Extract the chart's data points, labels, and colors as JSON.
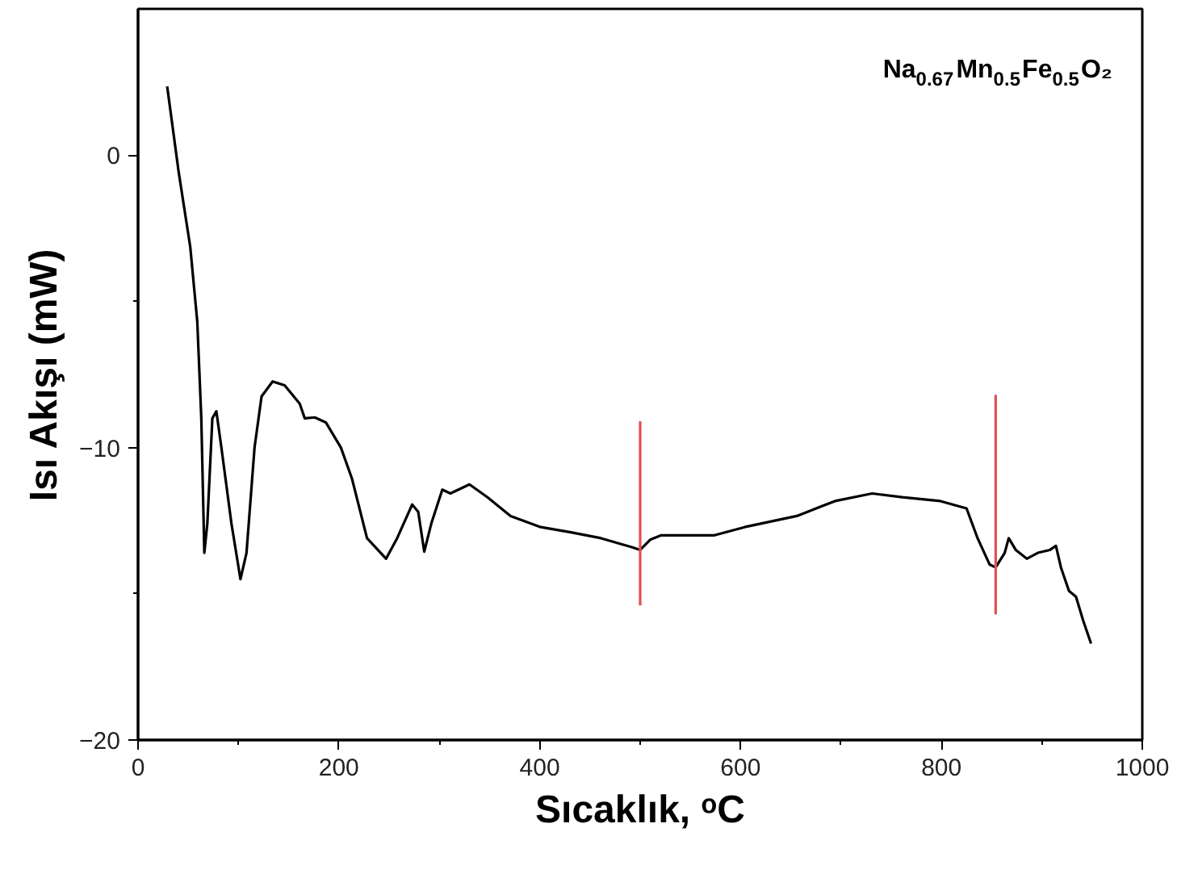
{
  "chart_data": {
    "type": "line",
    "xlabel": "Sıcaklık, ᵒC",
    "ylabel": "Isı Akışı (mW)",
    "annotations": [
      "Na$_{0.67}$Mn$_{0.5}$Fe$_{0.5}$O₂"
    ],
    "xlim": [
      0,
      1000
    ],
    "ylim": [
      -20,
      5
    ],
    "xticks": [
      0,
      200,
      400,
      600,
      800,
      1000
    ],
    "yticks": [
      -20,
      -10,
      0
    ],
    "grid": false,
    "marker": "none",
    "line_style": "solid",
    "series": [
      {
        "color": "#000000",
        "x": [
          29,
          40.5,
          52,
          59,
          63,
          66,
          69,
          74,
          78,
          83,
          93,
          102,
          108,
          116,
          123,
          134,
          146,
          161,
          166,
          176,
          187,
          202,
          213,
          228,
          247,
          258,
          273,
          279,
          285,
          292,
          303,
          311,
          330,
          348,
          371,
          401,
          431,
          461,
          491,
          500,
          510,
          521,
          574,
          604,
          656,
          694,
          731,
          761,
          799,
          825,
          836,
          848,
          854,
          863,
          867,
          874,
          885,
          896,
          908,
          914,
          919,
          927,
          934,
          941,
          949
        ],
        "values": [
          2.35,
          -0.59,
          -3.14,
          -5.7,
          -9.0,
          -13.6,
          -12.6,
          -9.0,
          -8.76,
          -10.0,
          -12.6,
          -14.5,
          -13.6,
          -10.0,
          -8.25,
          -7.74,
          -7.87,
          -8.5,
          -9.0,
          -8.97,
          -9.14,
          -10.0,
          -11.06,
          -13.1,
          -13.8,
          -13.1,
          -11.95,
          -12.2,
          -13.56,
          -12.6,
          -11.44,
          -11.57,
          -11.26,
          -11.7,
          -12.34,
          -12.72,
          -12.9,
          -13.1,
          -13.4,
          -13.5,
          -13.15,
          -13.0,
          -13.0,
          -12.72,
          -12.34,
          -11.83,
          -11.57,
          -11.7,
          -11.83,
          -12.08,
          -13.1,
          -14.0,
          -14.1,
          -13.6,
          -13.1,
          -13.5,
          -13.8,
          -13.6,
          -13.5,
          -13.36,
          -14.1,
          -14.9,
          -15.1,
          -15.9,
          -16.7
        ]
      },
      {
        "color": "#e05050",
        "x": [
          500,
          500
        ],
        "values": [
          -9.1,
          -15.4
        ]
      },
      {
        "color": "#e05050",
        "x": [
          854,
          854
        ],
        "values": [
          -8.2,
          -15.7
        ]
      }
    ]
  }
}
